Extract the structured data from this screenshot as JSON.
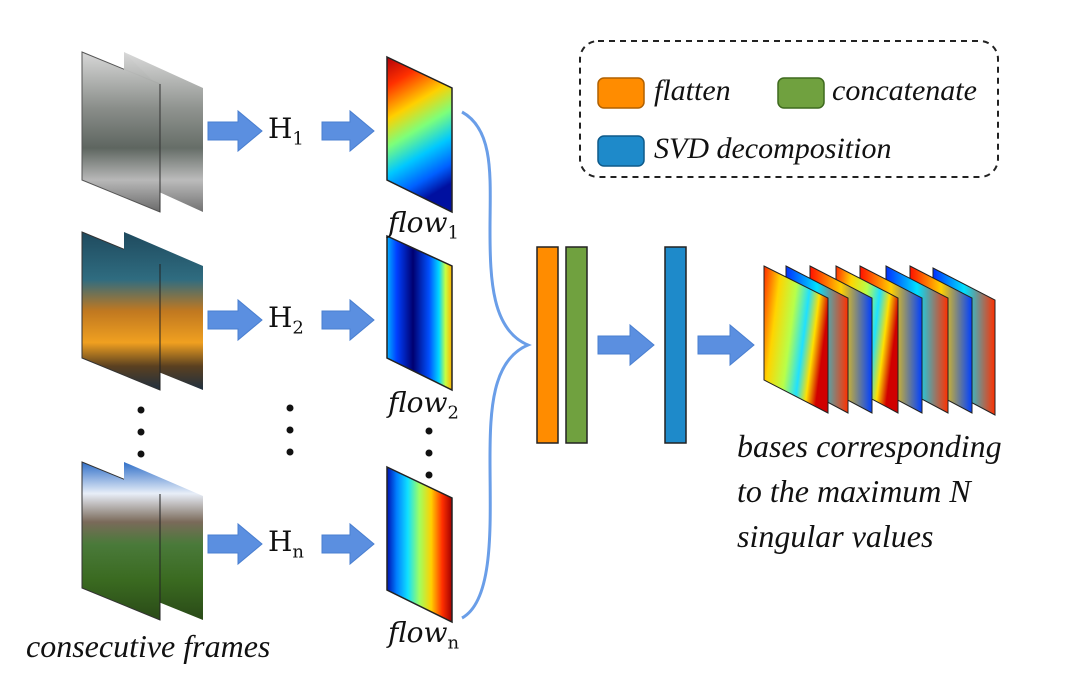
{
  "legend": {
    "flatten": {
      "label": "flatten",
      "color": "#FF8C00"
    },
    "concatenate": {
      "label": "concatenate",
      "color": "#70A13F"
    },
    "svd": {
      "label": "SVD decomposition",
      "color": "#1E8ACA"
    }
  },
  "rows": [
    {
      "h_base": "H",
      "h_sub": "1",
      "flow_base": "flow",
      "flow_sub": "1"
    },
    {
      "h_base": "H",
      "h_sub": "2",
      "flow_base": "flow",
      "flow_sub": "2"
    },
    {
      "h_base": "H",
      "h_sub": "n",
      "flow_base": "flow",
      "flow_sub": "n"
    }
  ],
  "captions": {
    "frames": "consecutive frames",
    "bases_line1": "bases corresponding",
    "bases_line2": "to the maximum N",
    "bases_line3": "singular values"
  },
  "colors": {
    "arrow": "#5B8FE0",
    "brace": "#6A9EE8"
  }
}
